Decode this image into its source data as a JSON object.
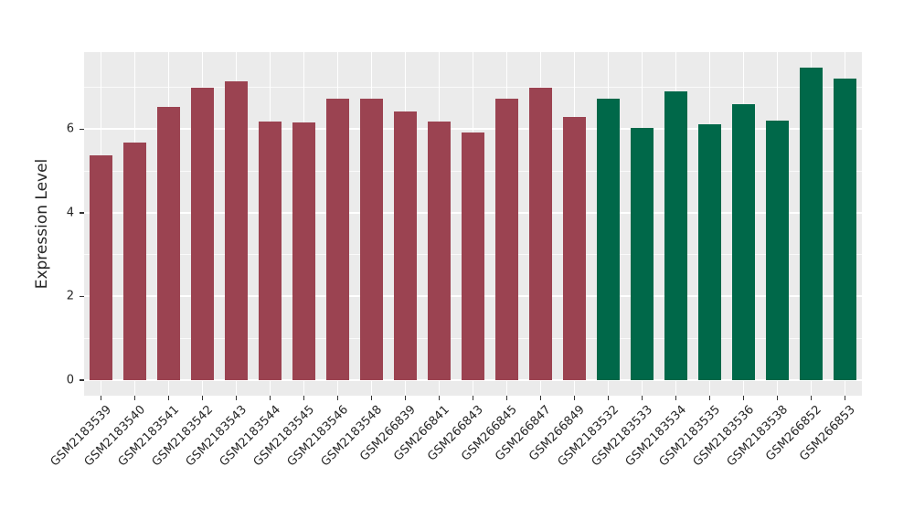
{
  "chart_data": {
    "type": "bar",
    "title": "",
    "xlabel": "",
    "ylabel": "Expression Level",
    "categories": [
      "GSM2183539",
      "GSM2183540",
      "GSM2183541",
      "GSM2183542",
      "GSM2183543",
      "GSM2183544",
      "GSM2183545",
      "GSM2183546",
      "GSM2183548",
      "GSM266839",
      "GSM266841",
      "GSM266843",
      "GSM266845",
      "GSM266847",
      "GSM266849",
      "GSM2183532",
      "GSM2183533",
      "GSM2183534",
      "GSM2183535",
      "GSM2183536",
      "GSM2183538",
      "GSM266852",
      "GSM266853"
    ],
    "values": [
      5.38,
      5.68,
      6.53,
      6.99,
      7.15,
      6.18,
      6.15,
      6.72,
      6.72,
      6.41,
      6.18,
      5.92,
      6.72,
      6.98,
      6.28,
      6.72,
      6.03,
      6.9,
      6.12,
      6.6,
      6.21,
      7.47,
      7.2
    ],
    "colors": [
      "#9B4351",
      "#9B4351",
      "#9B4351",
      "#9B4351",
      "#9B4351",
      "#9B4351",
      "#9B4351",
      "#9B4351",
      "#9B4351",
      "#9B4351",
      "#9B4351",
      "#9B4351",
      "#9B4351",
      "#9B4351",
      "#9B4351",
      "#006849",
      "#006849",
      "#006849",
      "#006849",
      "#006849",
      "#006849",
      "#006849",
      "#006849"
    ],
    "group_colors": {
      "maroon_group": "#9B4351",
      "green_group": "#006849"
    },
    "yticks": [
      0,
      2,
      4,
      6
    ],
    "yticks_minor": [
      1,
      3,
      5,
      7
    ],
    "ylim": [
      -0.37,
      7.84
    ],
    "xtick_rotation": 45,
    "grid": "on",
    "legend": "none",
    "panel_bg": "#EBEBEB",
    "grid_color": "#FFFFFF",
    "tick_color": "#333333",
    "text_color": "#262626"
  }
}
